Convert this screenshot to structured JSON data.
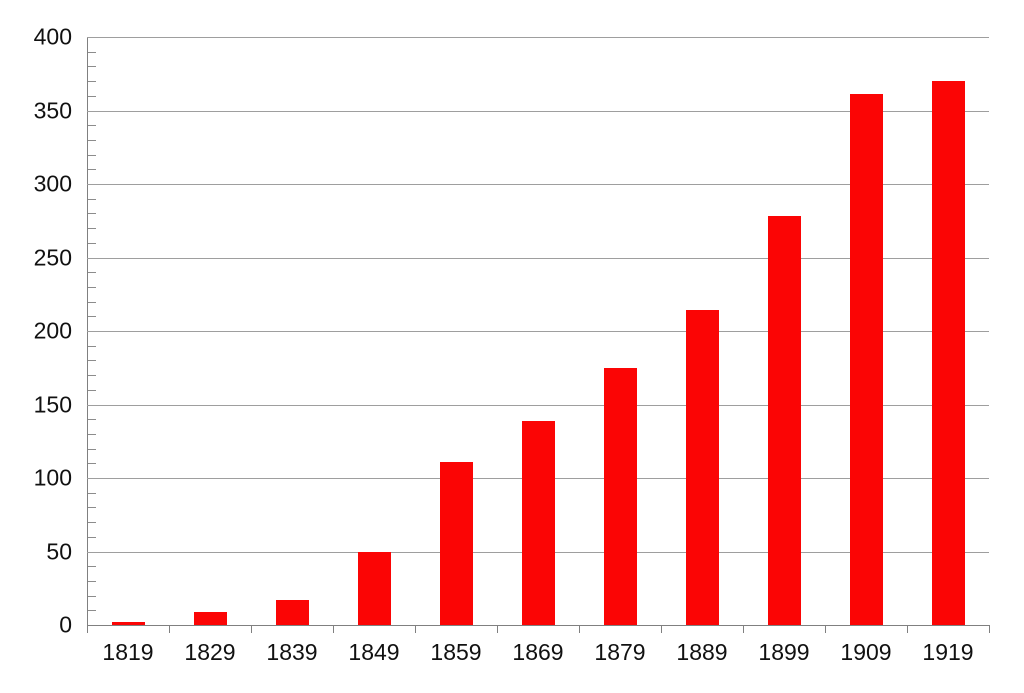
{
  "chart_data": {
    "type": "bar",
    "categories": [
      "1819",
      "1829",
      "1839",
      "1849",
      "1859",
      "1869",
      "1879",
      "1889",
      "1899",
      "1909",
      "1919"
    ],
    "values": [
      2,
      9,
      17,
      50,
      111,
      139,
      175,
      214,
      278,
      361,
      370
    ],
    "title": "",
    "xlabel": "",
    "ylabel": "",
    "ylim": [
      0,
      400
    ],
    "ytick_step": 50,
    "y_minor_step": 10,
    "ytick_labels": [
      "0",
      "50",
      "100",
      "150",
      "200",
      "250",
      "300",
      "350",
      "400"
    ],
    "grid": true,
    "legend_position": "none",
    "bar_color": "#fb0505",
    "axis_color": "#808080",
    "gridline_color": "#9e9e9e",
    "label_color": "#111111",
    "background_color": "#ffffff"
  }
}
